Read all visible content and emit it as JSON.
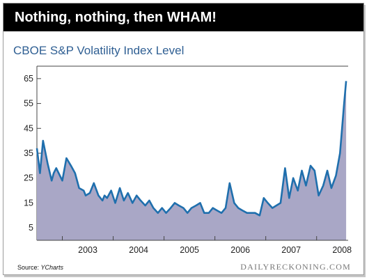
{
  "header": {
    "title": "Nothing, nothing, then WHAM!"
  },
  "colors": {
    "header_bg": "#000000",
    "title_text": "#ffffff",
    "subtitle": "#2f5f93",
    "line": "#1f6fad",
    "fill": "#a9a7c6"
  },
  "chart_data": {
    "type": "area",
    "title": "CBOE S&P Volatility Index Level",
    "xlabel": "",
    "ylabel": "",
    "ylim": [
      0,
      70
    ],
    "xlim": [
      2002.5,
      2008.62
    ],
    "yticks": [
      5,
      15,
      25,
      35,
      45,
      55,
      65
    ],
    "xticks": [
      "2003",
      "2004",
      "2005",
      "2006",
      "2007",
      "2008"
    ],
    "grid": "horizontal",
    "legend": "none",
    "series": [
      {
        "x": [
          2002.5,
          2002.56,
          2002.62,
          2002.71,
          2002.79,
          2002.83,
          2002.88,
          2003.0,
          2003.08,
          2003.17,
          2003.25,
          2003.33,
          2003.42,
          2003.46,
          2003.54,
          2003.62,
          2003.71,
          2003.79,
          2003.83,
          2003.88,
          2003.96,
          2004.04,
          2004.13,
          2004.21,
          2004.29,
          2004.38,
          2004.46,
          2004.54,
          2004.63,
          2004.71,
          2004.79,
          2004.88,
          2004.96,
          2005.04,
          2005.13,
          2005.21,
          2005.29,
          2005.38,
          2005.46,
          2005.54,
          2005.63,
          2005.71,
          2005.79,
          2005.88,
          2005.96,
          2006.04,
          2006.13,
          2006.21,
          2006.29,
          2006.38,
          2006.46,
          2006.54,
          2006.63,
          2006.71,
          2006.79,
          2006.88,
          2006.96,
          2007.04,
          2007.13,
          2007.21,
          2007.29,
          2007.38,
          2007.46,
          2007.54,
          2007.63,
          2007.71,
          2007.79,
          2007.88,
          2007.96,
          2008.04,
          2008.13,
          2008.21,
          2008.29,
          2008.38,
          2008.46,
          2008.54,
          2008.58
        ],
        "values": [
          37,
          27,
          40,
          31,
          24,
          27,
          29,
          24,
          33,
          30,
          27,
          21,
          20,
          18,
          19,
          23,
          18,
          16,
          18,
          17,
          20,
          15,
          21,
          16,
          19,
          15,
          18,
          16,
          14,
          16,
          13,
          11,
          13,
          11,
          13,
          15,
          14,
          13,
          11,
          13,
          14,
          15,
          11,
          11,
          13,
          12,
          11,
          13,
          23,
          15,
          13,
          12,
          11,
          11,
          11,
          10,
          17,
          15,
          13,
          14,
          15,
          29,
          17,
          25,
          20,
          28,
          22,
          30,
          28,
          18,
          22,
          28,
          21,
          26,
          35,
          55,
          64
        ]
      }
    ]
  },
  "source": {
    "label": "Source:",
    "name": "YCharts"
  },
  "watermark": {
    "text": "DAILYRECKONING.COM"
  }
}
